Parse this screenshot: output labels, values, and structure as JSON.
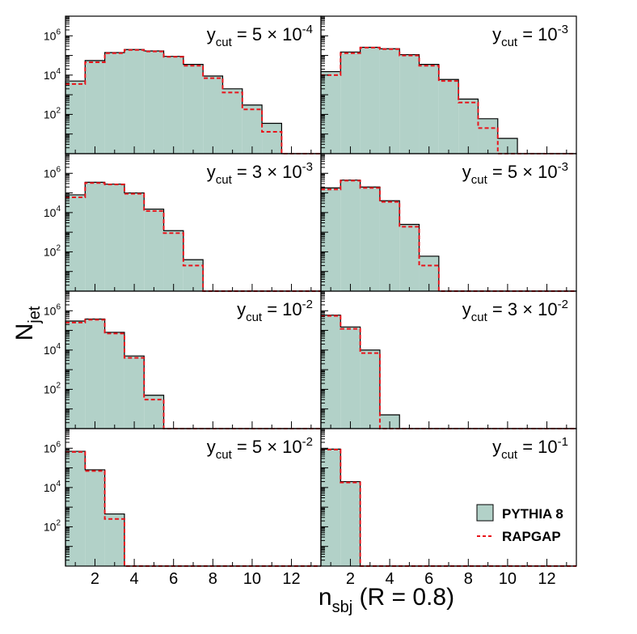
{
  "figure": {
    "ylabel_main": "N",
    "ylabel_sub": "jet",
    "xlabel_main": "n",
    "xlabel_sub": "sbj",
    "xlabel_rest": " (R = 0.8)"
  },
  "legend": {
    "pythia_label": "PYTHIA 8",
    "rapgap_label": "RAPGAP"
  },
  "colors": {
    "pythia_fill": "#b2d1c8",
    "pythia_edge": "#000000",
    "rapgap_line": "#e8141b"
  },
  "chart_data": {
    "type": "bar",
    "x_bins": [
      1,
      2,
      3,
      4,
      5,
      6,
      7,
      8,
      9,
      10,
      11,
      12,
      13
    ],
    "xlim": [
      0.5,
      13.5
    ],
    "x_ticks": [
      2,
      4,
      6,
      8,
      10,
      12
    ],
    "x_tick_labels": [
      "2",
      "4",
      "6",
      "8",
      "10",
      "12"
    ],
    "y_scale": "log",
    "ylim": [
      1,
      10000000
    ],
    "y_ticks": [
      100,
      10000,
      1000000
    ],
    "y_tick_labels": [
      {
        "base": "10",
        "exp": "2"
      },
      {
        "base": "10",
        "exp": "4"
      },
      {
        "base": "10",
        "exp": "6"
      }
    ],
    "panels": [
      {
        "label_pre": "y",
        "label_sub": "cut",
        "label_eq": " = 5 × 10",
        "label_exp": "-4",
        "pythia": [
          5000,
          55000,
          140000,
          200000,
          170000,
          90000,
          35000,
          9000,
          2000,
          300,
          35,
          1,
          1
        ],
        "rapgap": [
          3500,
          45000,
          130000,
          190000,
          160000,
          85000,
          30000,
          7000,
          1300,
          180,
          13,
          1,
          1
        ]
      },
      {
        "label_pre": "y",
        "label_sub": "cut",
        "label_eq": " = 10",
        "label_exp": "-3",
        "pythia": [
          15000,
          150000,
          260000,
          220000,
          110000,
          35000,
          6000,
          600,
          60,
          6,
          1,
          1,
          1
        ],
        "rapgap": [
          10000,
          130000,
          250000,
          210000,
          100000,
          30000,
          5000,
          400,
          20,
          1,
          1,
          1,
          1
        ]
      },
      {
        "label_pre": "y",
        "label_sub": "cut",
        "label_eq": " = 3 × 10",
        "label_exp": "-3",
        "pythia": [
          80000,
          350000,
          280000,
          100000,
          15000,
          1200,
          40,
          1,
          1,
          1,
          1,
          1,
          1
        ],
        "rapgap": [
          60000,
          320000,
          270000,
          90000,
          12000,
          900,
          20,
          1,
          1,
          1,
          1,
          1,
          1
        ]
      },
      {
        "label_pre": "y",
        "label_sub": "cut",
        "label_eq": " = 5 × 10",
        "label_exp": "-3",
        "pythia": [
          180000,
          450000,
          200000,
          40000,
          2500,
          60,
          1,
          1,
          1,
          1,
          1,
          1,
          1
        ],
        "rapgap": [
          150000,
          420000,
          180000,
          35000,
          1900,
          20,
          1,
          1,
          1,
          1,
          1,
          1,
          1
        ]
      },
      {
        "label_pre": "y",
        "label_sub": "cut",
        "label_eq": " = 10",
        "label_exp": "-2",
        "pythia": [
          300000,
          380000,
          80000,
          5000,
          50,
          1,
          1,
          1,
          1,
          1,
          1,
          1,
          1
        ],
        "rapgap": [
          250000,
          350000,
          70000,
          4000,
          30,
          1,
          1,
          1,
          1,
          1,
          1,
          1,
          1
        ]
      },
      {
        "label_pre": "y",
        "label_sub": "cut",
        "label_eq": " = 3 × 10",
        "label_exp": "-2",
        "pythia": [
          600000,
          150000,
          10000,
          5,
          1,
          1,
          1,
          1,
          1,
          1,
          1,
          1,
          1
        ],
        "rapgap": [
          550000,
          120000,
          7000,
          1,
          1,
          1,
          1,
          1,
          1,
          1,
          1,
          1,
          1
        ]
      },
      {
        "label_pre": "y",
        "label_sub": "cut",
        "label_eq": " = 5 × 10",
        "label_exp": "-2",
        "pythia": [
          700000,
          80000,
          450,
          1,
          1,
          1,
          1,
          1,
          1,
          1,
          1,
          1,
          1
        ],
        "rapgap": [
          650000,
          70000,
          250,
          1,
          1,
          1,
          1,
          1,
          1,
          1,
          1,
          1,
          1
        ]
      },
      {
        "label_pre": "y",
        "label_sub": "cut",
        "label_eq": " = 10",
        "label_exp": "-1",
        "pythia": [
          900000,
          20000,
          1,
          1,
          1,
          1,
          1,
          1,
          1,
          1,
          1,
          1,
          1
        ],
        "rapgap": [
          850000,
          18000,
          1,
          1,
          1,
          1,
          1,
          1,
          1,
          1,
          1,
          1,
          1
        ]
      }
    ]
  }
}
